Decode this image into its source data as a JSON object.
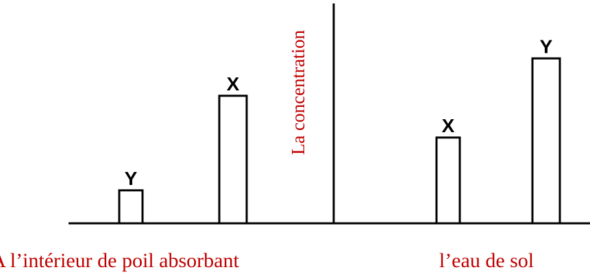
{
  "chart_data": {
    "type": "bar",
    "ylabel": "La concentration",
    "ylim": [
      0,
      100
    ],
    "groups": [
      {
        "name": "A l’intérieur de poil absorbant",
        "categories": [
          "Y",
          "X"
        ],
        "values": [
          15,
          58
        ]
      },
      {
        "name": "l’eau de sol",
        "categories": [
          "X",
          "Y"
        ],
        "values": [
          39,
          75
        ]
      }
    ]
  }
}
